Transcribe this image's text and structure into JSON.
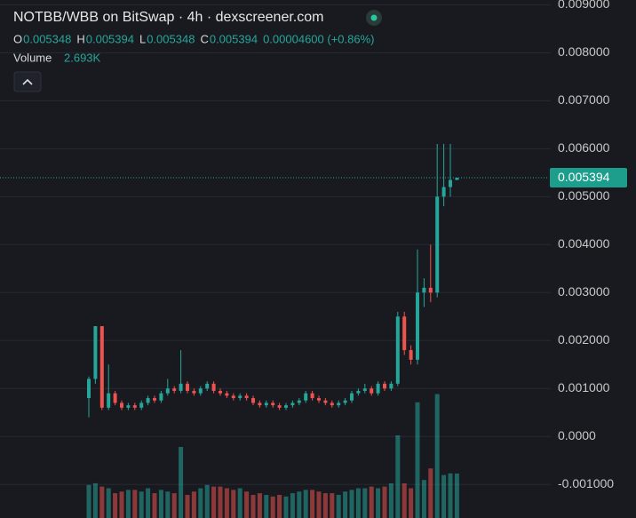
{
  "chart_data": {
    "type": "candlestick",
    "header": {
      "title": "NOTBB/WBB on BitSwap · 4h · dexscreener.com",
      "ohlc": [
        {
          "key": "O",
          "value": "0.005348"
        },
        {
          "key": "H",
          "value": "0.005394"
        },
        {
          "key": "L",
          "value": "0.005348"
        },
        {
          "key": "C",
          "value": "0.005394"
        }
      ],
      "change": "0.00004600 (+0.86%)",
      "volume_label": "Volume",
      "volume_value": "2.693K"
    },
    "up_color": "#26a69a",
    "down_color": "#ef5350",
    "grid": true,
    "ylim": [
      -0.0017,
      0.0091
    ],
    "yticks": [
      {
        "value": 0.009,
        "label": "0.009000"
      },
      {
        "value": 0.008,
        "label": "0.008000"
      },
      {
        "value": 0.007,
        "label": "0.007000"
      },
      {
        "value": 0.006,
        "label": "0.006000"
      },
      {
        "value": 0.005,
        "label": "0.005000"
      },
      {
        "value": 0.004,
        "label": "0.004000"
      },
      {
        "value": 0.003,
        "label": "0.003000"
      },
      {
        "value": 0.002,
        "label": "0.002000"
      },
      {
        "value": 0.001,
        "label": "0.001000"
      },
      {
        "value": 0,
        "label": "0.0000"
      },
      {
        "value": -0.001,
        "label": "-0.001000"
      }
    ],
    "last_price": 0.005394,
    "volume_lim": [
      0,
      10000
    ],
    "open": [
      0.0008,
      0.0012,
      0.0023,
      0.0006,
      0.0009,
      0.0007,
      0.0006,
      0.00065,
      0.0006,
      0.0007,
      0.0008,
      0.00075,
      0.0009,
      0.001,
      0.00095,
      0.0011,
      0.00095,
      0.0009,
      0.001,
      0.0011,
      0.00095,
      0.0009,
      0.00085,
      0.0008,
      0.00085,
      0.0008,
      0.0007,
      0.00065,
      0.0007,
      0.00065,
      0.0006,
      0.00065,
      0.0007,
      0.00075,
      0.0009,
      0.0008,
      0.00075,
      0.0007,
      0.00065,
      0.0007,
      0.00075,
      0.0009,
      0.00095,
      0.001,
      0.0009,
      0.0011,
      0.001,
      0.0011,
      0.0025,
      0.0018,
      0.0016,
      0.003,
      0.0031,
      0.003,
      0.005,
      0.0052,
      0.005348
    ],
    "high": [
      0.00125,
      0.0023,
      0.0023,
      0.0015,
      0.00095,
      0.00075,
      0.0007,
      0.0007,
      0.00075,
      0.00085,
      0.00085,
      0.00095,
      0.0012,
      0.00105,
      0.0018,
      0.00115,
      0.001,
      0.00105,
      0.00115,
      0.00115,
      0.001,
      0.00095,
      0.0009,
      0.0009,
      0.0009,
      0.00085,
      0.00075,
      0.00075,
      0.00075,
      0.0007,
      0.0007,
      0.00075,
      0.0008,
      0.00095,
      0.00095,
      0.00085,
      0.0008,
      0.00075,
      0.00075,
      0.0008,
      0.00095,
      0.001,
      0.0011,
      0.00105,
      0.00115,
      0.00115,
      0.00115,
      0.0026,
      0.0026,
      0.0019,
      0.0039,
      0.0033,
      0.004,
      0.0061,
      0.0061,
      0.0061,
      0.005394
    ],
    "low": [
      0.0004,
      0.0011,
      0.00055,
      0.00055,
      0.00065,
      0.00055,
      0.00055,
      0.00055,
      0.00055,
      0.00065,
      0.0007,
      0.0007,
      0.00085,
      0.0009,
      0.0009,
      0.0009,
      0.00085,
      0.00085,
      0.00095,
      0.0009,
      0.00085,
      0.0008,
      0.00075,
      0.00075,
      0.00075,
      0.00065,
      0.0006,
      0.0006,
      0.0006,
      0.00055,
      0.00055,
      0.0006,
      0.00065,
      0.0007,
      0.00075,
      0.0007,
      0.00065,
      0.0006,
      0.0006,
      0.00065,
      0.0007,
      0.00085,
      0.0009,
      0.00085,
      0.00085,
      0.00095,
      0.00095,
      0.00105,
      0.0017,
      0.0015,
      0.0015,
      0.0027,
      0.0028,
      0.0029,
      0.0048,
      0.005,
      0.005348
    ],
    "close": [
      0.0012,
      0.0023,
      0.0006,
      0.0009,
      0.0007,
      0.0006,
      0.00065,
      0.0006,
      0.0007,
      0.0008,
      0.00075,
      0.0009,
      0.001,
      0.00095,
      0.0011,
      0.00095,
      0.0009,
      0.001,
      0.0011,
      0.00095,
      0.0009,
      0.00085,
      0.0008,
      0.00085,
      0.0008,
      0.0007,
      0.00065,
      0.0007,
      0.00065,
      0.0006,
      0.00065,
      0.0007,
      0.00075,
      0.0009,
      0.0008,
      0.00075,
      0.0007,
      0.00065,
      0.0007,
      0.00075,
      0.0009,
      0.00095,
      0.001,
      0.0009,
      0.0011,
      0.001,
      0.0011,
      0.0025,
      0.0018,
      0.0016,
      0.003,
      0.0031,
      0.003,
      0.005,
      0.0052,
      0.005348,
      0.005394
    ],
    "volume": [
      2000,
      2100,
      1900,
      1800,
      1500,
      1600,
      1700,
      1700,
      1600,
      1800,
      1500,
      1700,
      1600,
      1500,
      4300,
      1400,
      1600,
      1800,
      2000,
      1900,
      1900,
      1800,
      1700,
      1800,
      1600,
      1400,
      1500,
      1400,
      1300,
      1400,
      1300,
      1500,
      1600,
      1700,
      1700,
      1600,
      1500,
      1500,
      1400,
      1600,
      1700,
      1800,
      1800,
      1900,
      1800,
      1900,
      2100,
      5000,
      2100,
      1800,
      7000,
      2300,
      3000,
      7500,
      2600,
      2700,
      2693
    ]
  }
}
